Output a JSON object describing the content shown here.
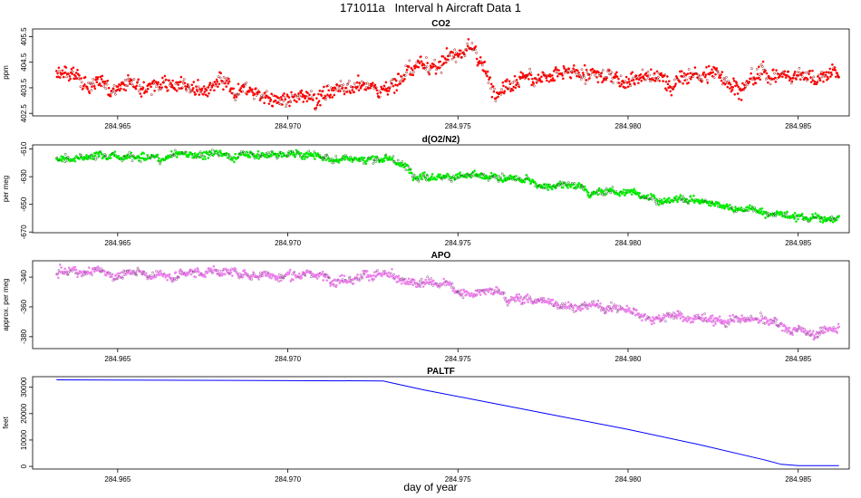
{
  "page": {
    "title": "171011a   Interval h Aircraft Data 1",
    "xlabel": "day of year"
  },
  "chart_data": [
    {
      "type": "scatter",
      "title": "CO2",
      "xlabel": "",
      "ylabel": "ppm",
      "xlim": [
        284.9625,
        284.9865
      ],
      "ylim": [
        402.4,
        405.8
      ],
      "xticks": [
        "284.965",
        "284.970",
        "284.975",
        "284.980",
        "284.985"
      ],
      "yticks": [
        "402.5",
        "403.5",
        "404.5",
        "405.5"
      ],
      "color": "#ff0000",
      "x_range": [
        284.9632,
        284.9862
      ],
      "series": [
        {
          "name": "",
          "x": [
            284.9632,
            284.964,
            284.965,
            284.966,
            284.967,
            284.968,
            284.9685,
            284.969,
            284.9695,
            284.97,
            284.971,
            284.972,
            284.9725,
            284.973,
            284.9735,
            284.974,
            284.9745,
            284.975,
            284.9755,
            284.976,
            284.9765,
            284.977,
            284.978,
            284.979,
            284.98,
            284.981,
            284.982,
            284.983,
            284.984,
            284.985,
            284.9855,
            284.9862
          ],
          "values": [
            404.0,
            403.6,
            403.7,
            403.8,
            403.8,
            403.6,
            403.0,
            403.2,
            403.3,
            403.0,
            403.4,
            403.5,
            403.4,
            403.6,
            404.2,
            404.6,
            404.5,
            405.0,
            404.8,
            403.6,
            403.9,
            404.0,
            404.0,
            403.9,
            404.0,
            403.9,
            404.0,
            403.9,
            404.0,
            404.1,
            404.0,
            404.0
          ]
        }
      ]
    },
    {
      "type": "scatter",
      "title": "d(O2/N2)",
      "xlabel": "",
      "ylabel": "per meg",
      "xlim": [
        284.9625,
        284.9865
      ],
      "ylim": [
        -670.5,
        -607
      ],
      "xticks": [
        "284.965",
        "284.970",
        "284.975",
        "284.980",
        "284.985"
      ],
      "yticks": [
        "-610",
        "-630",
        "-650",
        "-670"
      ],
      "color": "#00ee00",
      "x_range": [
        284.9632,
        284.9862
      ],
      "series": [
        {
          "name": "",
          "x": [
            284.9632,
            284.9645,
            284.966,
            284.967,
            284.968,
            284.969,
            284.97,
            284.971,
            284.972,
            284.9728,
            284.9735,
            284.974,
            284.975,
            284.976,
            284.977,
            284.978,
            284.979,
            284.98,
            284.981,
            284.982,
            284.983,
            284.984,
            284.985,
            284.9855,
            284.9862
          ],
          "values": [
            -617,
            -616,
            -618,
            -616,
            -613,
            -614,
            -615,
            -616,
            -617,
            -617,
            -624,
            -628,
            -630,
            -632,
            -634,
            -637,
            -640,
            -642,
            -645,
            -648,
            -650,
            -655,
            -659,
            -660,
            -662
          ]
        }
      ]
    },
    {
      "type": "scatter",
      "title": "APO",
      "xlabel": "",
      "ylabel": "approx. per meg",
      "xlim": [
        284.9625,
        284.9865
      ],
      "ylim": [
        -388,
        -329
      ],
      "xticks": [
        "284.965",
        "284.970",
        "284.975",
        "284.980",
        "284.985"
      ],
      "yticks": [
        "-340",
        "-360",
        "-380"
      ],
      "color": "#ee82ee",
      "x_range": [
        284.9632,
        284.9862
      ],
      "series": [
        {
          "name": "",
          "x": [
            284.9632,
            284.9645,
            284.966,
            284.968,
            284.97,
            284.971,
            284.972,
            284.9728,
            284.9735,
            284.9745,
            284.9755,
            284.9765,
            284.9775,
            284.9785,
            284.98,
            284.981,
            284.982,
            284.983,
            284.984,
            284.985,
            284.9862
          ],
          "values": [
            -337,
            -338,
            -338,
            -337,
            -338,
            -339,
            -339,
            -338,
            -346,
            -348,
            -350,
            -354,
            -357,
            -359,
            -363,
            -364,
            -365,
            -368,
            -371,
            -378,
            -375
          ]
        }
      ]
    },
    {
      "type": "line",
      "title": "PALTF",
      "xlabel": "day of year",
      "ylabel": "feet",
      "xlim": [
        284.9625,
        284.9865
      ],
      "ylim": [
        -1000,
        34000
      ],
      "xticks": [
        "284.965",
        "284.970",
        "284.975",
        "284.980",
        "284.985"
      ],
      "yticks": [
        "0",
        "10000",
        "20000",
        "30000"
      ],
      "color": "#0000ff",
      "series": [
        {
          "name": "",
          "x": [
            284.9632,
            284.9728,
            284.974,
            284.976,
            284.978,
            284.98,
            284.982,
            284.984,
            284.9845,
            284.985,
            284.9862
          ],
          "values": [
            32800,
            32400,
            29000,
            24000,
            19000,
            14000,
            8500,
            2500,
            800,
            300,
            300
          ]
        }
      ]
    }
  ]
}
